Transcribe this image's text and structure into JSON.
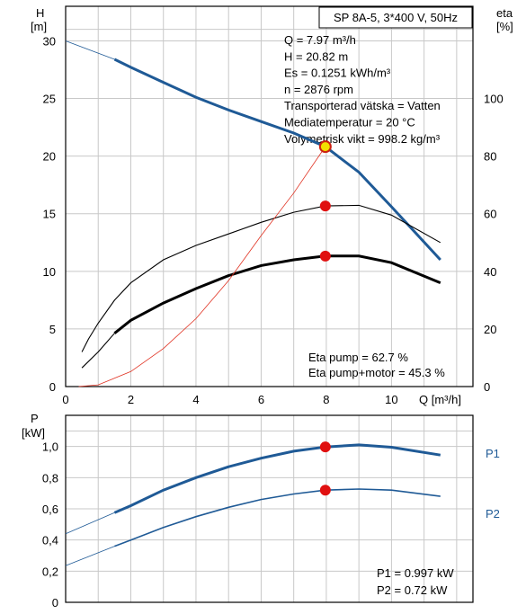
{
  "chart_data": [
    {
      "type": "line",
      "title_box": "SP 8A-5, 3*400 V, 50Hz",
      "xlabel": "Q [m³/h]",
      "ylabel_left": [
        "H",
        "[m]"
      ],
      "ylabel_right": [
        "eta",
        "[%]"
      ],
      "xlim": [
        0,
        12.5
      ],
      "ylim_left": [
        0,
        33
      ],
      "ylim_right": [
        0,
        132
      ],
      "xticks": [
        0,
        2,
        4,
        6,
        8,
        10
      ],
      "yticks_left": [
        0,
        5,
        10,
        15,
        20,
        25,
        30
      ],
      "yticks_right": [
        0,
        20,
        40,
        60,
        80,
        100
      ],
      "grid": true,
      "info_lines": [
        "Q = 7.97 m³/h",
        "H = 20.82 m",
        "Es = 0.1251 kWh/m³",
        "n = 2876 rpm",
        "Transporterad vätska = Vatten",
        "Mediatemperatur = 20 °C",
        "Volymetrisk vikt = 998.2 kg/m³"
      ],
      "eta_lines": [
        "Eta pump = 62.7 %",
        "Eta pump+motor = 45.3 %"
      ],
      "series": [
        {
          "axis": "left",
          "color": "#1f5a96",
          "values_x": [
            0,
            1.5,
            2,
            3,
            4,
            5,
            6,
            7,
            7.97,
            9,
            10,
            11.5
          ],
          "values_y": [
            30,
            28.4,
            27.7,
            26.4,
            25.1,
            24.0,
            23.0,
            22.0,
            20.82,
            18.6,
            15.6,
            11.0
          ]
        },
        {
          "axis": "right",
          "color": "#000000",
          "values_x": [
            0.5,
            0.7,
            1,
            1.5,
            2,
            3,
            4,
            5,
            6,
            7,
            7.97,
            9,
            10,
            11.5
          ],
          "values_y": [
            12,
            16.5,
            22,
            30,
            36,
            44,
            49,
            53,
            57,
            60.5,
            62.7,
            62.9,
            59.5,
            50
          ]
        },
        {
          "axis": "right",
          "color": "#000000",
          "values_x": [
            0.5,
            1,
            1.5,
            2,
            3,
            4,
            5,
            6,
            7,
            7.97,
            9,
            10,
            11.5
          ],
          "values_y": [
            6.5,
            12,
            18.5,
            23,
            29,
            34,
            38.5,
            42,
            44,
            45.3,
            45.3,
            43,
            36
          ]
        },
        {
          "axis": "left",
          "color": "#e03020",
          "values_x": [
            0.4,
            1,
            2,
            3,
            4,
            5,
            6,
            7,
            7.97
          ],
          "values_y": [
            0,
            0.15,
            1.3,
            3.3,
            5.9,
            9.2,
            13.1,
            16.8,
            20.82
          ]
        }
      ],
      "markers": [
        {
          "x": 7.97,
          "y": 20.82,
          "axis": "left",
          "color": "#f2e000",
          "stroke": "#cc2010"
        },
        {
          "x": 7.97,
          "y": 62.7,
          "axis": "right",
          "color": "#e01010"
        },
        {
          "x": 7.97,
          "y": 45.3,
          "axis": "right",
          "color": "#e01010"
        }
      ]
    },
    {
      "type": "line",
      "ylabel": [
        "P",
        "[kW]"
      ],
      "xlim": [
        0,
        12.5
      ],
      "ylim": [
        0,
        1.2
      ],
      "xticks": [
        0,
        2,
        4,
        6,
        8,
        10
      ],
      "yticks": [
        "0",
        "0,2",
        "0,4",
        "0,6",
        "0,8",
        "1,0"
      ],
      "ytick_values": [
        0,
        0.2,
        0.4,
        0.6,
        0.8,
        1.0
      ],
      "grid": true,
      "power_lines": [
        "P1 = 0.997 kW",
        "P2 = 0.72 kW"
      ],
      "series": [
        {
          "name": "P1",
          "color": "#1f5a96",
          "values_x": [
            0,
            1.5,
            2,
            3,
            4,
            5,
            6,
            7,
            7.97,
            9,
            10,
            11.5
          ],
          "values_y": [
            0.44,
            0.575,
            0.62,
            0.72,
            0.8,
            0.87,
            0.925,
            0.97,
            0.997,
            1.01,
            0.995,
            0.945
          ]
        },
        {
          "name": "P2",
          "color": "#1f5a96",
          "values_x": [
            0,
            1.5,
            2,
            3,
            4,
            5,
            6,
            7,
            7.97,
            9,
            10,
            11.5
          ],
          "values_y": [
            0.235,
            0.36,
            0.4,
            0.48,
            0.55,
            0.61,
            0.66,
            0.695,
            0.72,
            0.727,
            0.72,
            0.68
          ]
        }
      ],
      "markers": [
        {
          "x": 7.97,
          "y": 0.997,
          "color": "#e01010"
        },
        {
          "x": 7.97,
          "y": 0.72,
          "color": "#e01010"
        }
      ]
    }
  ]
}
